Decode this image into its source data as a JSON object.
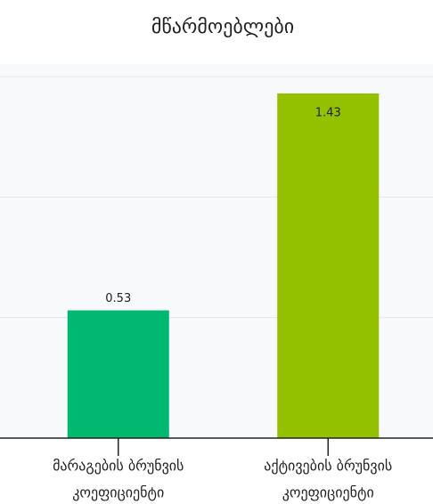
{
  "chart_data": {
    "type": "bar",
    "title": "მწარმოებლები",
    "categories": [
      [
        "მარაგების ბრუნვის",
        "კოეფიციენტი"
      ],
      [
        "აქტივების ბრუნვის",
        "კოეფიციენტი"
      ]
    ],
    "values": [
      0.53,
      1.43
    ],
    "colors": [
      "#00b870",
      "#93c100"
    ],
    "ylim": [
      0,
      1.5
    ],
    "yticks": [
      0,
      0.5,
      1,
      1.5
    ],
    "grid": true
  }
}
